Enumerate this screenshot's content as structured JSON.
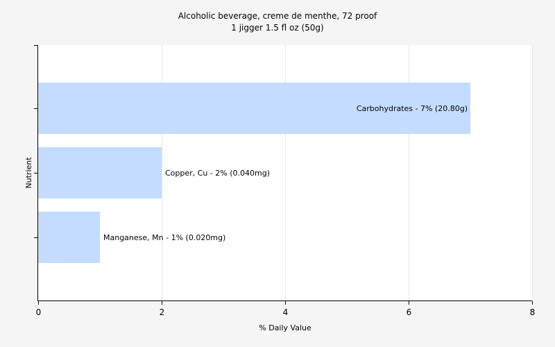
{
  "chart_data": {
    "type": "bar",
    "orientation": "horizontal",
    "title": "Alcoholic beverage, creme de menthe, 72 proof",
    "subtitle": "1 jigger 1.5 fl oz (50g)",
    "xlabel": "% Daily Value",
    "ylabel": "Nutrient",
    "xlim": [
      0,
      8
    ],
    "xticks": [
      "0",
      "2",
      "4",
      "6",
      "8"
    ],
    "grid": true,
    "bar_color": "#c4dcff",
    "plot_background": "#ffffff",
    "categories": [
      "Carbohydrates",
      "Copper, Cu",
      "Manganese, Mn"
    ],
    "values": [
      7,
      2,
      1
    ],
    "data_labels": [
      "Carbohydrates - 7% (20.80g)",
      "Copper, Cu - 2% (0.040mg)",
      "Manganese, Mn - 1% (0.020mg)"
    ]
  }
}
